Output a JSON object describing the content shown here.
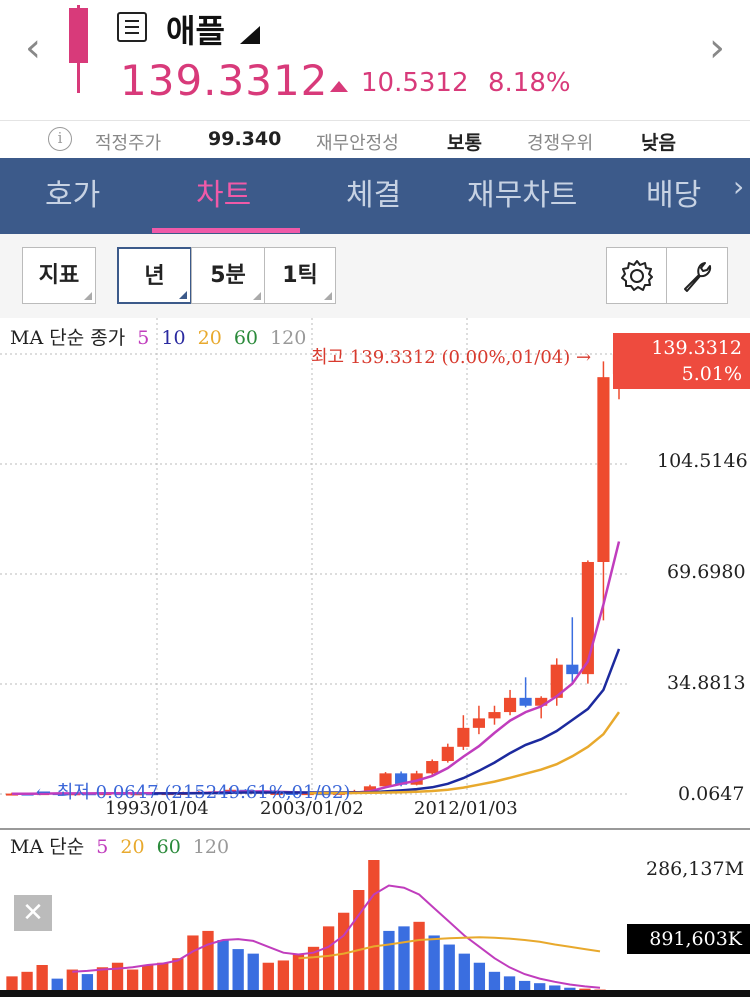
{
  "header": {
    "back_icon": "chevron-left-icon",
    "forward_icon": "chevron-right-icon",
    "menu_icon": "menu-list-icon",
    "stock_name": "애플",
    "price": "139.3312",
    "change_value": "10.5312",
    "change_pct": "8.18%",
    "up_color": "#d83a7a"
  },
  "info_row": {
    "info_icon": "info-icon",
    "fair_price_label": "적정주가",
    "fair_price_value": "99.340",
    "stability_label": "재무안정성",
    "stability_value": "보통",
    "competitive_label": "경쟁우위",
    "competitive_value": "낮음"
  },
  "tabs": [
    {
      "label": "호가",
      "active": false
    },
    {
      "label": "차트",
      "active": true
    },
    {
      "label": "체결",
      "active": false
    },
    {
      "label": "재무차트",
      "active": false
    },
    {
      "label": "배당",
      "active": false
    }
  ],
  "tabs_more_icon": "chevron-right-icon",
  "toolbar": {
    "indicator_label": "지표",
    "period_year": "년",
    "period_5min": "5분",
    "period_1tick": "1틱",
    "settings_icon": "gear-icon",
    "tool_icon": "wrench-icon"
  },
  "price_chart": {
    "ma_legend_prefix": "MA 단순 종가",
    "ma_periods": [
      "5",
      "10",
      "20",
      "60",
      "120"
    ],
    "ma_colors": [
      "#c03dbd",
      "#2a2aa0",
      "#e8a92d",
      "#2a8a3a",
      "#999999"
    ],
    "high_tag_price": "139.3312",
    "high_tag_pct": "5.01%",
    "high_note": "최고 139.3312 (0.00%,01/04) →",
    "low_note": "← 최저 0.0647 (215249.61%,01/02)",
    "y_labels": [
      "104.5146",
      "69.6980",
      "34.8813",
      "0.0647"
    ],
    "x_labels": [
      "1993/01/04",
      "2003/01/02",
      "2012/01/03"
    ]
  },
  "volume_chart": {
    "ma_legend_prefix": "MA 단순",
    "ma_periods": [
      "5",
      "20",
      "60",
      "120"
    ],
    "ma_colors": [
      "#c03dbd",
      "#e8a92d",
      "#2a8a3a",
      "#999999"
    ],
    "max_label": "286,137M",
    "last_label": "891,603K",
    "close_icon": "close-icon"
  },
  "chart_data": [
    {
      "type": "candlestick",
      "title": "",
      "ylim": [
        0.0647,
        139.3312
      ],
      "y_ticks": [
        0.0647,
        34.8813,
        69.698,
        104.5146,
        139.3312
      ],
      "x_tick_labels": [
        "1993/01/04",
        "2003/01/02",
        "2012/01/03"
      ],
      "candles": [
        {
          "o": 0.1,
          "c": 0.2,
          "h": 0.5,
          "l": 0.06,
          "up": true
        },
        {
          "o": 0.2,
          "c": 0.15,
          "h": 0.5,
          "l": 0.1,
          "up": false
        },
        {
          "o": 0.15,
          "c": 0.35,
          "h": 0.6,
          "l": 0.1,
          "up": true
        },
        {
          "o": 0.35,
          "c": 0.25,
          "h": 0.6,
          "l": 0.2,
          "up": false
        },
        {
          "o": 0.25,
          "c": 0.3,
          "h": 0.5,
          "l": 0.2,
          "up": true
        },
        {
          "o": 0.3,
          "c": 0.25,
          "h": 0.5,
          "l": 0.2,
          "up": false
        },
        {
          "o": 0.25,
          "c": 0.35,
          "h": 0.6,
          "l": 0.2,
          "up": true
        },
        {
          "o": 0.35,
          "c": 0.25,
          "h": 0.6,
          "l": 0.2,
          "up": false
        },
        {
          "o": 0.25,
          "c": 0.3,
          "h": 0.5,
          "l": 0.2,
          "up": true
        },
        {
          "o": 0.3,
          "c": 0.25,
          "h": 0.5,
          "l": 0.2,
          "up": false
        },
        {
          "o": 0.25,
          "c": 0.35,
          "h": 0.6,
          "l": 0.2,
          "up": true
        },
        {
          "o": 0.35,
          "c": 0.4,
          "h": 0.8,
          "l": 0.25,
          "up": true
        },
        {
          "o": 0.4,
          "c": 0.6,
          "h": 1.0,
          "l": 0.3,
          "up": true
        },
        {
          "o": 0.6,
          "c": 0.9,
          "h": 1.4,
          "l": 0.5,
          "up": true
        },
        {
          "o": 0.9,
          "c": 1.4,
          "h": 2.0,
          "l": 0.8,
          "up": true
        },
        {
          "o": 1.4,
          "c": 0.8,
          "h": 1.6,
          "l": 0.6,
          "up": false
        },
        {
          "o": 0.8,
          "c": 0.3,
          "h": 1.0,
          "l": 0.2,
          "up": false
        },
        {
          "o": 0.3,
          "c": 0.4,
          "h": 0.6,
          "l": 0.2,
          "up": true
        },
        {
          "o": 0.4,
          "c": 0.3,
          "h": 0.6,
          "l": 0.2,
          "up": false
        },
        {
          "o": 0.3,
          "c": 0.35,
          "h": 0.6,
          "l": 0.2,
          "up": true
        },
        {
          "o": 0.35,
          "c": 0.25,
          "h": 0.6,
          "l": 0.2,
          "up": false
        },
        {
          "o": 0.25,
          "c": 0.4,
          "h": 0.6,
          "l": 0.2,
          "up": true
        },
        {
          "o": 0.4,
          "c": 1.0,
          "h": 1.4,
          "l": 0.3,
          "up": true
        },
        {
          "o": 1.0,
          "c": 2.5,
          "h": 3.0,
          "l": 0.8,
          "up": true
        },
        {
          "o": 2.5,
          "c": 6.6,
          "h": 7.0,
          "l": 2.0,
          "up": true
        },
        {
          "o": 6.6,
          "c": 3.0,
          "h": 7.2,
          "l": 2.5,
          "up": false
        },
        {
          "o": 3.0,
          "c": 6.6,
          "h": 7.4,
          "l": 2.8,
          "up": true
        },
        {
          "o": 6.6,
          "c": 10.5,
          "h": 11.0,
          "l": 6.0,
          "up": true
        },
        {
          "o": 10.5,
          "c": 15.0,
          "h": 16.0,
          "l": 10.0,
          "up": true
        },
        {
          "o": 15.0,
          "c": 21.0,
          "h": 25.0,
          "l": 14.0,
          "up": true
        },
        {
          "o": 21.0,
          "c": 24.0,
          "h": 28.0,
          "l": 19.0,
          "up": true
        },
        {
          "o": 24.0,
          "c": 26.0,
          "h": 28.0,
          "l": 22.0,
          "up": true
        },
        {
          "o": 26.0,
          "c": 30.5,
          "h": 33.0,
          "l": 25.0,
          "up": true
        },
        {
          "o": 30.5,
          "c": 28.0,
          "h": 37.0,
          "l": 27.5,
          "up": false
        },
        {
          "o": 28.0,
          "c": 30.5,
          "h": 31.0,
          "l": 24.0,
          "up": true
        },
        {
          "o": 30.5,
          "c": 41.0,
          "h": 43.0,
          "l": 28.0,
          "up": true
        },
        {
          "o": 41.0,
          "c": 38.0,
          "h": 56.0,
          "l": 35.0,
          "up": false
        },
        {
          "o": 38.0,
          "c": 73.5,
          "h": 74.0,
          "l": 35.0,
          "up": true
        },
        {
          "o": 73.5,
          "c": 132.0,
          "h": 137.0,
          "l": 55.0,
          "up": true
        },
        {
          "o": 133.0,
          "c": 139.33,
          "h": 139.33,
          "l": 125.0,
          "up": true
        }
      ],
      "series": [
        {
          "name": "5",
          "values": [
            0.15,
            0.17,
            0.2,
            0.25,
            0.26,
            0.27,
            0.28,
            0.29,
            0.28,
            0.28,
            0.29,
            0.32,
            0.38,
            0.5,
            0.7,
            0.85,
            0.9,
            0.8,
            0.65,
            0.5,
            0.4,
            0.36,
            0.48,
            0.92,
            2.2,
            3.3,
            4.3,
            5.8,
            8.3,
            11.9,
            15.2,
            19.4,
            23.3,
            26.0,
            27.8,
            31.0,
            35.0,
            42.0,
            60.0,
            80.0
          ]
        },
        {
          "name": "10",
          "values": [
            null,
            null,
            null,
            null,
            null,
            null,
            null,
            null,
            null,
            0.23,
            0.25,
            0.27,
            0.3,
            0.35,
            0.45,
            0.53,
            0.55,
            0.55,
            0.55,
            0.55,
            0.55,
            0.55,
            0.56,
            0.65,
            0.9,
            1.2,
            1.6,
            2.2,
            3.3,
            5.1,
            7.4,
            10.0,
            13.0,
            15.6,
            17.4,
            20.0,
            23.5,
            27.0,
            33.0,
            46.0
          ]
        },
        {
          "name": "20",
          "values": [
            null,
            null,
            null,
            null,
            null,
            null,
            null,
            null,
            null,
            null,
            null,
            null,
            null,
            null,
            null,
            null,
            null,
            null,
            null,
            0.32,
            0.34,
            0.36,
            0.38,
            0.44,
            0.55,
            0.65,
            0.8,
            1.0,
            1.4,
            2.1,
            3.0,
            4.0,
            5.2,
            6.5,
            7.8,
            9.5,
            12.0,
            15.0,
            19.0,
            26.0
          ]
        }
      ]
    },
    {
      "type": "bar",
      "title": "",
      "ylim": [
        0,
        286137
      ],
      "y_unit": "M",
      "values": [
        30,
        40,
        55,
        25,
        45,
        35,
        50,
        60,
        45,
        55,
        60,
        70,
        120,
        130,
        110,
        90,
        80,
        60,
        65,
        80,
        95,
        140,
        170,
        220,
        286,
        130,
        140,
        150,
        120,
        100,
        80,
        60,
        40,
        30,
        20,
        15,
        10,
        5,
        3,
        1
      ],
      "up": [
        true,
        true,
        true,
        false,
        true,
        false,
        true,
        true,
        true,
        true,
        true,
        true,
        true,
        true,
        false,
        false,
        false,
        true,
        true,
        true,
        true,
        true,
        true,
        true,
        true,
        false,
        false,
        true,
        false,
        false,
        false,
        false,
        false,
        false,
        false,
        false,
        false,
        false,
        true,
        true
      ],
      "series": [
        {
          "name": "5",
          "values": [
            null,
            null,
            null,
            null,
            40,
            42,
            45,
            47,
            50,
            55,
            58,
            65,
            85,
            100,
            110,
            112,
            108,
            95,
            82,
            78,
            82,
            95,
            120,
            165,
            210,
            230,
            225,
            210,
            180,
            150,
            120,
            95,
            70,
            50,
            35,
            25,
            18,
            12,
            8,
            5
          ]
        },
        {
          "name": "20",
          "values": [
            null,
            null,
            null,
            null,
            null,
            null,
            null,
            null,
            null,
            null,
            null,
            null,
            null,
            null,
            null,
            null,
            null,
            null,
            null,
            70,
            72,
            75,
            80,
            88,
            96,
            100,
            105,
            110,
            112,
            114,
            115,
            116,
            115,
            113,
            110,
            106,
            100,
            95,
            90,
            85
          ]
        }
      ]
    }
  ]
}
